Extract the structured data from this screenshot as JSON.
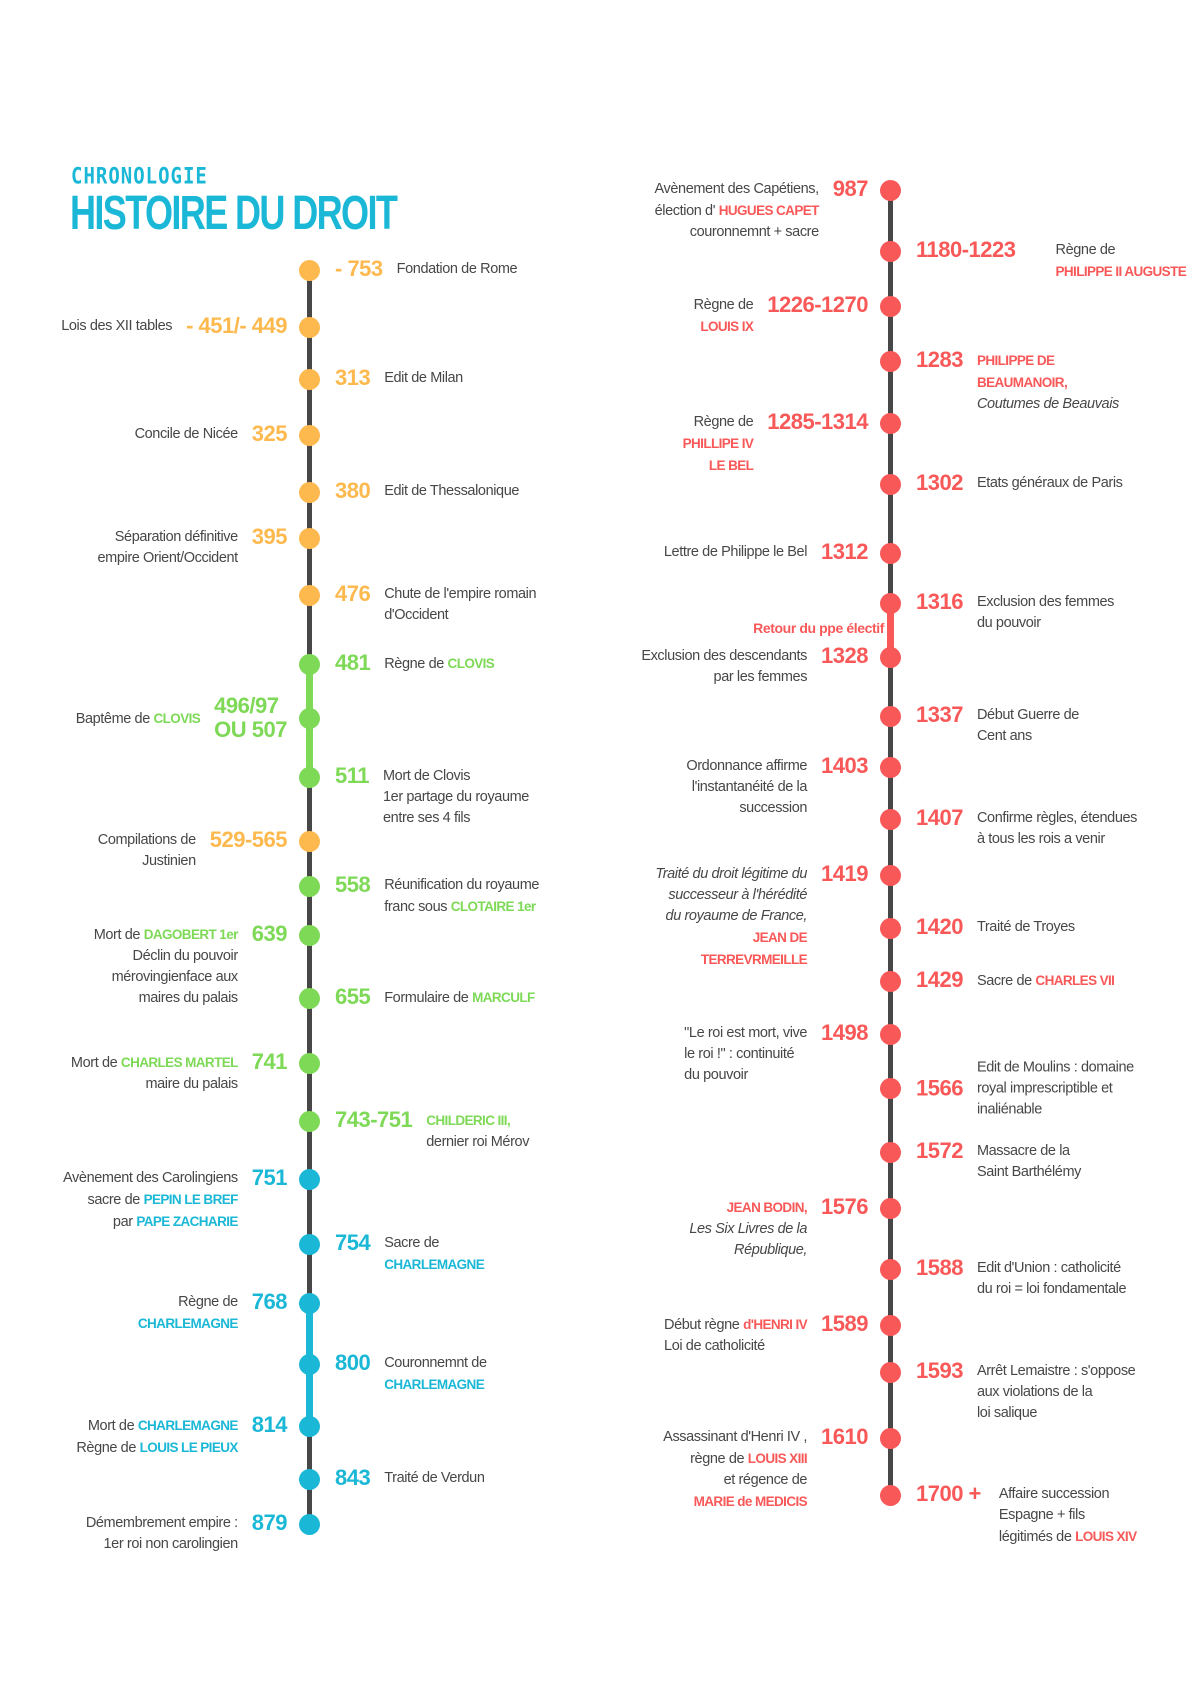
{
  "header": {
    "kicker": "CHRONOLOGIE",
    "title": "HISTOIRE DU DROIT"
  },
  "colors": {
    "orange": "#fdb94e",
    "green": "#7ed957",
    "blue": "#1ab8d6",
    "red": "#f95858",
    "line": "#474747",
    "text": "#474747"
  },
  "timeline_left": [
    {
      "year": "- 753",
      "c": "orange",
      "lines": [
        [
          "Fondation de Rome"
        ]
      ]
    },
    {
      "year": "- 451/- 449",
      "c": "orange",
      "lines": [
        [
          "Lois des XII tables"
        ]
      ]
    },
    {
      "year": "313",
      "c": "orange",
      "lines": [
        [
          "Edit de Milan"
        ]
      ]
    },
    {
      "year": "325",
      "c": "orange",
      "lines": [
        [
          "Concile de Nicée"
        ]
      ]
    },
    {
      "year": "380",
      "c": "orange",
      "lines": [
        [
          "Edit de Thessalonique"
        ]
      ]
    },
    {
      "year": "395",
      "c": "orange",
      "lines": [
        [
          "Séparation définitive"
        ],
        [
          "empire Orient/Occident"
        ]
      ]
    },
    {
      "year": "476",
      "c": "orange",
      "lines": [
        [
          "Chute de l'empire romain"
        ],
        [
          "d'Occident"
        ]
      ]
    },
    {
      "year": "481",
      "c": "green",
      "lines": [
        [
          "Règne de ",
          {
            "hl": "CLOVIS"
          }
        ]
      ]
    },
    {
      "year": "496/97\nOU 507",
      "c": "green",
      "lines": [
        [
          "Baptême de ",
          {
            "hl": "CLOVIS"
          }
        ]
      ]
    },
    {
      "year": "511",
      "c": "green",
      "lines": [
        [
          "Mort de Clovis"
        ],
        [
          "1er partage du royaume"
        ],
        [
          "entre ses 4 fils"
        ]
      ]
    },
    {
      "year": "529-565",
      "c": "orange",
      "lines": [
        [
          "Compilations de"
        ],
        [
          "Justinien"
        ]
      ]
    },
    {
      "year": "558",
      "c": "green",
      "lines": [
        [
          "Réunification du royaume"
        ],
        [
          "franc sous ",
          {
            "hl": "CLOTAIRE 1er"
          }
        ]
      ]
    },
    {
      "year": "639",
      "c": "green",
      "lines": [
        [
          "Mort de ",
          {
            "hl": "DAGOBERT 1er"
          }
        ],
        [
          "Déclin du pouvoir"
        ],
        [
          "mérovingienface aux"
        ],
        [
          "maires du palais"
        ]
      ]
    },
    {
      "year": "655",
      "c": "green",
      "lines": [
        [
          "Formulaire de ",
          {
            "hl": "MARCULF"
          }
        ]
      ]
    },
    {
      "year": "741",
      "c": "green",
      "lines": [
        [
          "Mort de ",
          {
            "hl": "CHARLES MARTEL"
          }
        ],
        [
          "maire du palais"
        ]
      ]
    },
    {
      "year": "743-751",
      "c": "green",
      "lines": [
        [
          {
            "hl": "CHILDERIC III,"
          }
        ],
        [
          "dernier roi Mérov"
        ]
      ]
    },
    {
      "year": "751",
      "c": "blue",
      "lines": [
        [
          "Avènement des Carolingiens"
        ],
        [
          "sacre de ",
          {
            "hl": "PEPIN LE BREF"
          }
        ],
        [
          "par ",
          {
            "hl": "PAPE ZACHARIE"
          }
        ]
      ]
    },
    {
      "year": "754",
      "c": "blue",
      "lines": [
        [
          "Sacre de"
        ],
        [
          {
            "hl": "CHARLEMAGNE"
          }
        ]
      ]
    },
    {
      "year": "768",
      "c": "blue",
      "lines": [
        [
          "Règne de"
        ],
        [
          {
            "hl": "CHARLEMAGNE"
          }
        ]
      ]
    },
    {
      "year": "800",
      "c": "blue",
      "lines": [
        [
          "Couronnemnt de"
        ],
        [
          {
            "hl": "CHARLEMAGNE"
          }
        ]
      ]
    },
    {
      "year": "814",
      "c": "blue",
      "lines": [
        [
          "Mort de ",
          {
            "hl": "CHARLEMAGNE"
          }
        ],
        [
          "Règne de ",
          {
            "hl": "LOUIS LE PIEUX"
          }
        ]
      ]
    },
    {
      "year": "843",
      "c": "blue",
      "lines": [
        [
          "Traité de Verdun"
        ]
      ]
    },
    {
      "year": "879",
      "c": "blue",
      "lines": [
        [
          "Démembrement empire :"
        ],
        [
          "1er roi non carolingien"
        ]
      ]
    }
  ],
  "timeline_right": [
    {
      "year": "987",
      "c": "red",
      "lines": [
        [
          "Avènement des Capétiens,"
        ],
        [
          "élection d' ",
          {
            "hl": "HUGUES CAPET"
          }
        ],
        [
          "couronnemnt + sacre"
        ]
      ]
    },
    {
      "year": "1180-1223",
      "c": "red",
      "lines": [
        [
          "Règne de"
        ],
        [
          {
            "hl": "PHILIPPE II AUGUSTE"
          }
        ]
      ]
    },
    {
      "year": "1226-1270",
      "c": "red",
      "lines": [
        [
          "Règne de"
        ],
        [
          {
            "hl": "LOUIS IX"
          }
        ]
      ]
    },
    {
      "year": "1283",
      "c": "red",
      "lines": [
        [
          {
            "hl": "PHILIPPE DE"
          }
        ],
        [
          {
            "hl": "BEAUMANOIR,"
          }
        ],
        [
          {
            "it": "Coutumes de Beauvais"
          }
        ]
      ]
    },
    {
      "year": "1285-1314",
      "c": "red",
      "lines": [
        [
          "Règne de"
        ],
        [
          {
            "hl": "PHILLIPE IV"
          }
        ],
        [
          {
            "hl": "LE BEL"
          }
        ]
      ]
    },
    {
      "year": "1302",
      "c": "red",
      "lines": [
        [
          "Etats généraux de Paris"
        ]
      ]
    },
    {
      "year": "1312",
      "c": "red",
      "lines": [
        [
          "Lettre de Philippe le Bel"
        ]
      ]
    },
    {
      "year": "1316",
      "c": "red",
      "lines": [
        [
          "Exclusion des femmes"
        ],
        [
          "du pouvoir"
        ]
      ]
    },
    {
      "year": "1328",
      "c": "red",
      "lines": [
        [
          "Exclusion des descendants"
        ],
        [
          "par les femmes"
        ]
      ]
    },
    {
      "year": "1337",
      "c": "red",
      "lines": [
        [
          "Début Guerre de"
        ],
        [
          "Cent ans"
        ]
      ]
    },
    {
      "year": "1403",
      "c": "red",
      "lines": [
        [
          "Ordonnance affirme"
        ],
        [
          "l'instantanéité de la"
        ],
        [
          "succession"
        ]
      ]
    },
    {
      "year": "1407",
      "c": "red",
      "lines": [
        [
          "Confirme règles, étendues"
        ],
        [
          "à tous les rois a venir"
        ]
      ]
    },
    {
      "year": "1419",
      "c": "red",
      "lines": [
        [
          {
            "it": "Traité du droit légitime du"
          }
        ],
        [
          {
            "it": "successeur à l'hérédité"
          }
        ],
        [
          {
            "it": "du royaume de France,"
          }
        ],
        [
          {
            "hl": "JEAN DE"
          }
        ],
        [
          {
            "hl": "TERREVRMEILLE"
          }
        ]
      ]
    },
    {
      "year": "1420",
      "c": "red",
      "lines": [
        [
          "Traité de Troyes"
        ]
      ]
    },
    {
      "year": "1429",
      "c": "red",
      "lines": [
        [
          "Sacre de ",
          {
            "hl": "CHARLES VII"
          }
        ]
      ]
    },
    {
      "year": "1498",
      "c": "red",
      "lines": [
        [
          "\"Le roi est mort, vive"
        ],
        [
          "le roi !\" : continuité"
        ],
        [
          "du pouvoir"
        ]
      ]
    },
    {
      "year": "1566",
      "c": "red",
      "lines": [
        [
          "Edit de Moulins : domaine"
        ],
        [
          "royal imprescriptible et"
        ],
        [
          "inaliénable"
        ]
      ]
    },
    {
      "year": "1572",
      "c": "red",
      "lines": [
        [
          "Massacre de la"
        ],
        [
          "Saint Barthélémy"
        ]
      ]
    },
    {
      "year": "1576",
      "c": "red",
      "lines": [
        [
          {
            "hl": "JEAN BODIN,"
          }
        ],
        [
          {
            "it": "Les Six Livres de la"
          }
        ],
        [
          {
            "it": "République,"
          }
        ]
      ]
    },
    {
      "year": "1588",
      "c": "red",
      "lines": [
        [
          "Edit d'Union : catholicité"
        ],
        [
          "du roi = loi fondamentale"
        ]
      ]
    },
    {
      "year": "1589",
      "c": "red",
      "lines": [
        [
          "Début règne ",
          {
            "hl": "d'HENRI IV"
          }
        ],
        [
          "Loi de catholicité"
        ]
      ]
    },
    {
      "year": "1593",
      "c": "red",
      "lines": [
        [
          "Arrêt Lemaistre : s'oppose"
        ],
        [
          "aux violations de la"
        ],
        [
          "loi salique"
        ]
      ]
    },
    {
      "year": "1610",
      "c": "red",
      "lines": [
        [
          "Assassinant d'Henri IV ,"
        ],
        [
          "règne de ",
          {
            "hl": "LOUIS XIII"
          }
        ],
        [
          "et régence de"
        ],
        [
          {
            "hl": "MARIE de MEDICIS"
          }
        ]
      ]
    },
    {
      "year": "1700 +",
      "c": "red",
      "lines": [
        [
          "Affaire succession"
        ],
        [
          "Espagne + fils"
        ],
        [
          "légitimés de ",
          {
            "hl": "LOUIS XIV"
          }
        ]
      ]
    }
  ],
  "retour_label": "Retour du ppe électif"
}
